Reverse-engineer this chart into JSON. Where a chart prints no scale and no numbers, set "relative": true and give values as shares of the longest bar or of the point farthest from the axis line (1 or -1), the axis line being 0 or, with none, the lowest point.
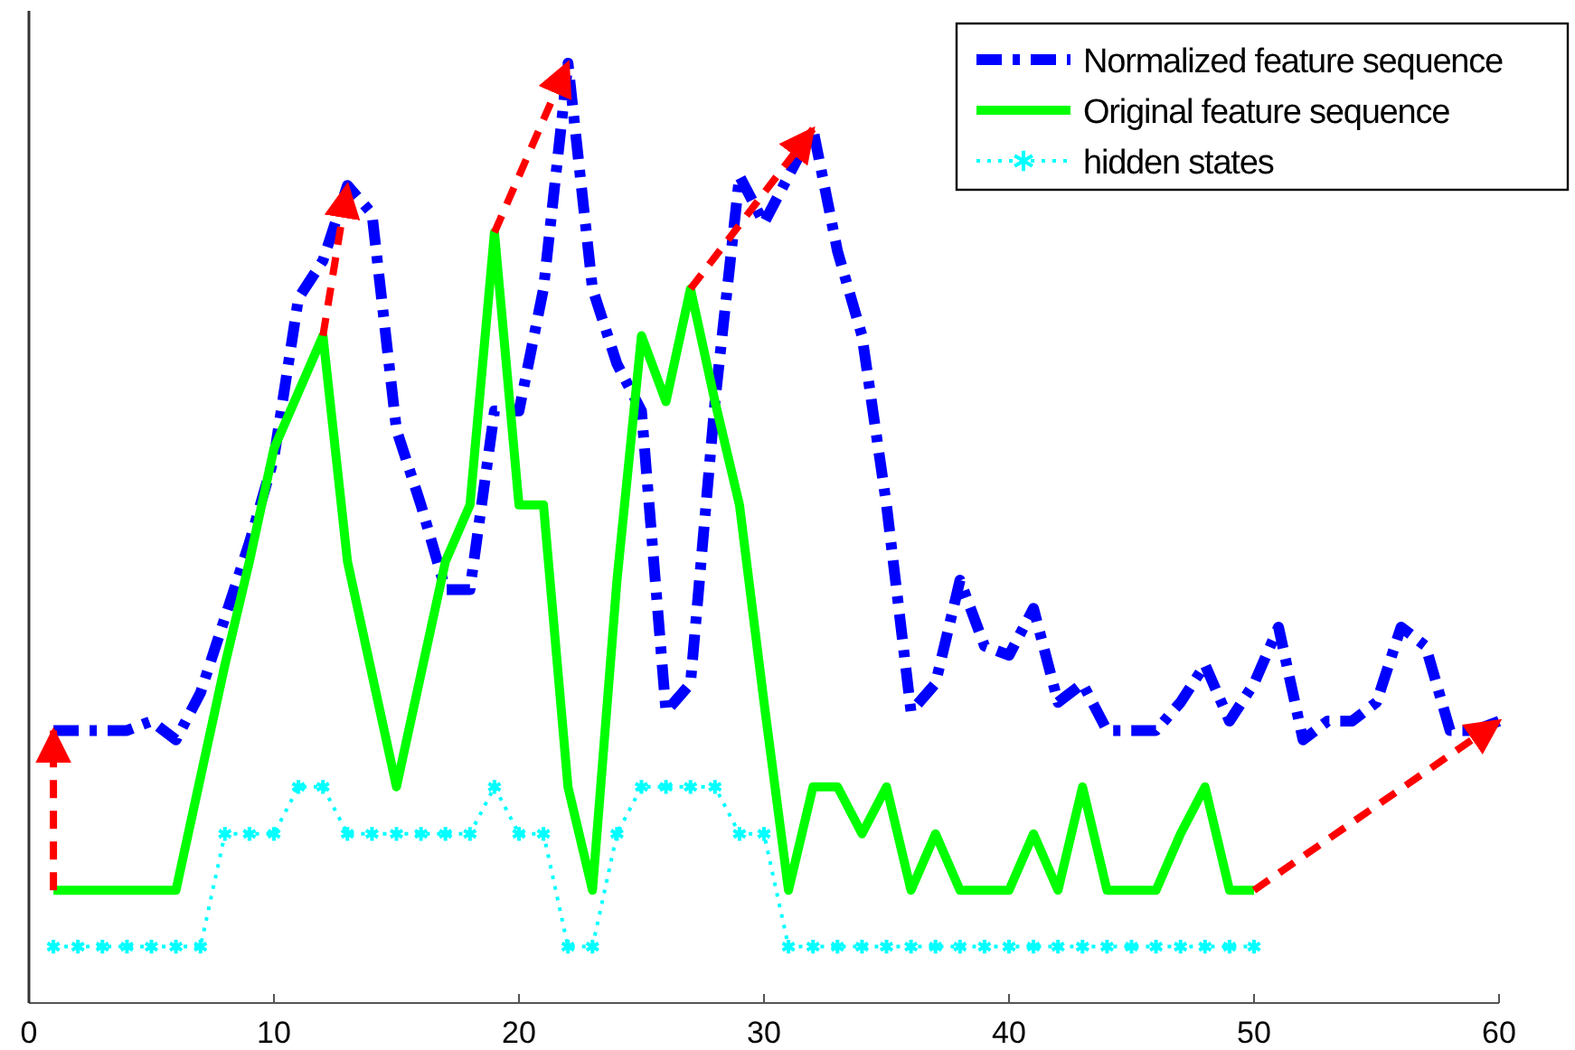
{
  "chart_data": {
    "type": "line",
    "relative": true,
    "xlim": [
      0,
      60
    ],
    "xticks": [
      0,
      10,
      20,
      30,
      40,
      50,
      60
    ],
    "tick_labels": "x",
    "grid": false,
    "legend": "top right",
    "series": [
      {
        "name": "Normalized feature sequence",
        "color": "#0000ff",
        "line_style": "dashdot",
        "x": [
          1,
          2,
          3,
          4,
          5,
          6,
          7,
          8,
          9,
          10,
          11,
          12,
          13,
          14,
          15,
          16,
          17,
          18,
          19,
          20,
          21,
          22,
          23,
          24,
          25,
          26,
          27,
          28,
          29,
          30,
          31,
          32,
          33,
          34,
          35,
          36,
          37,
          38,
          39,
          40,
          41,
          42,
          43,
          44,
          45,
          46,
          47,
          48,
          49,
          50,
          51,
          52,
          53,
          54,
          55,
          56,
          57,
          58,
          59,
          60
        ],
        "values": [
          0.29,
          0.29,
          0.29,
          0.29,
          0.3,
          0.28,
          0.33,
          0.41,
          0.49,
          0.58,
          0.75,
          0.79,
          0.87,
          0.84,
          0.61,
          0.53,
          0.44,
          0.44,
          0.63,
          0.63,
          0.76,
          1.0,
          0.76,
          0.68,
          0.63,
          0.31,
          0.34,
          0.64,
          0.88,
          0.83,
          0.88,
          0.93,
          0.8,
          0.71,
          0.53,
          0.31,
          0.34,
          0.45,
          0.38,
          0.37,
          0.42,
          0.32,
          0.34,
          0.29,
          0.29,
          0.29,
          0.32,
          0.36,
          0.3,
          0.34,
          0.4,
          0.28,
          0.3,
          0.3,
          0.32,
          0.4,
          0.38,
          0.29,
          0.29,
          0.3
        ]
      },
      {
        "name": "Original feature sequence",
        "color": "#00ff00",
        "line_style": "solid",
        "x": [
          1,
          2,
          3,
          4,
          5,
          6,
          7,
          8,
          9,
          10,
          11,
          12,
          13,
          14,
          15,
          16,
          17,
          18,
          19,
          20,
          21,
          22,
          23,
          24,
          25,
          26,
          27,
          28,
          29,
          30,
          31,
          32,
          33,
          34,
          35,
          36,
          37,
          38,
          39,
          40,
          41,
          42,
          43,
          44,
          45,
          46,
          47,
          48,
          49,
          50
        ],
        "values": [
          0.12,
          0.12,
          0.12,
          0.12,
          0.12,
          0.12,
          0.24,
          0.36,
          0.47,
          0.59,
          0.65,
          0.71,
          0.47,
          0.35,
          0.23,
          0.35,
          0.47,
          0.53,
          0.82,
          0.53,
          0.53,
          0.23,
          0.12,
          0.45,
          0.71,
          0.64,
          0.76,
          0.64,
          0.53,
          0.32,
          0.12,
          0.23,
          0.23,
          0.18,
          0.23,
          0.12,
          0.18,
          0.12,
          0.12,
          0.12,
          0.18,
          0.12,
          0.23,
          0.12,
          0.12,
          0.12,
          0.18,
          0.23,
          0.12,
          0.12
        ]
      },
      {
        "name": "hidden states",
        "color": "#00ffff",
        "line_style": "dotted",
        "marker": "cross",
        "x": [
          1,
          2,
          3,
          4,
          5,
          6,
          7,
          8,
          9,
          10,
          11,
          12,
          13,
          14,
          15,
          16,
          17,
          18,
          19,
          20,
          21,
          22,
          23,
          24,
          25,
          26,
          27,
          28,
          29,
          30,
          31,
          32,
          33,
          34,
          35,
          36,
          37,
          38,
          39,
          40,
          41,
          42,
          43,
          44,
          45,
          46,
          47,
          48,
          49,
          50
        ],
        "values": [
          0.06,
          0.06,
          0.06,
          0.06,
          0.06,
          0.06,
          0.06,
          0.18,
          0.18,
          0.18,
          0.23,
          0.23,
          0.18,
          0.18,
          0.18,
          0.18,
          0.18,
          0.18,
          0.23,
          0.18,
          0.18,
          0.06,
          0.06,
          0.18,
          0.23,
          0.23,
          0.23,
          0.23,
          0.18,
          0.18,
          0.06,
          0.06,
          0.06,
          0.06,
          0.06,
          0.06,
          0.06,
          0.06,
          0.06,
          0.06,
          0.06,
          0.06,
          0.06,
          0.06,
          0.06,
          0.06,
          0.06,
          0.06,
          0.06,
          0.06
        ]
      },
      {
        "color": "#ff0000",
        "line_style": "dashed",
        "x": [
          1,
          1
        ],
        "values": [
          0.12,
          0.29
        ]
      },
      {
        "color": "#ff0000",
        "line_style": "dashed",
        "x": [
          12,
          13
        ],
        "values": [
          0.71,
          0.87
        ]
      },
      {
        "color": "#ff0000",
        "line_style": "dashed",
        "x": [
          19,
          22
        ],
        "values": [
          0.82,
          1.0
        ]
      },
      {
        "color": "#ff0000",
        "line_style": "dashed",
        "x": [
          27,
          32
        ],
        "values": [
          0.76,
          0.93
        ]
      },
      {
        "color": "#ff0000",
        "line_style": "dashed",
        "x": [
          50,
          60
        ],
        "values": [
          0.12,
          0.3
        ]
      }
    ]
  }
}
